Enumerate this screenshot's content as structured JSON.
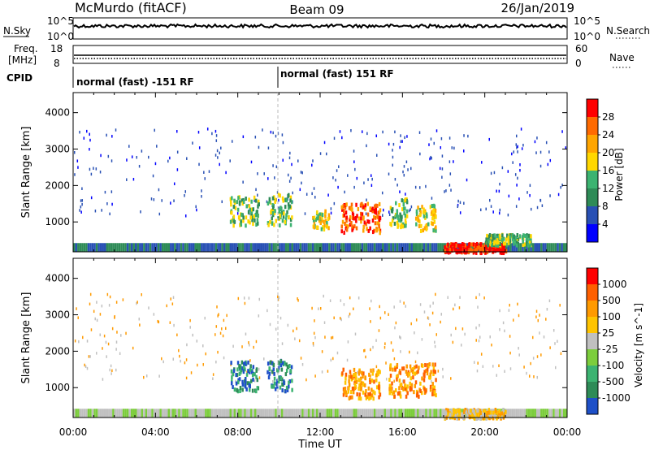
{
  "header": {
    "station": "McMurdo (fitACF)",
    "beam": "Beam 09",
    "date": "26/Jan/2019"
  },
  "left_labels": {
    "nsky": "N.Sky",
    "nsky_top": "10^5",
    "nsky_bot": "10^0",
    "freq_line1": "Freq.",
    "freq_line2": "[MHz]",
    "freq_top": "18",
    "freq_bot": "8",
    "cpid": "CPID"
  },
  "right_labels": {
    "nsearch": "N.Search",
    "nsearch_top": "10^5",
    "nsearch_bot": "10^0",
    "nave": "Nave",
    "nave_top": "60",
    "nave_bot": "0"
  },
  "cpid_segments": [
    {
      "label": "normal (fast) -151 RF",
      "start_hour": 0,
      "end_hour": 10
    },
    {
      "label": "normal (fast) 151 RF",
      "start_hour": 10,
      "end_hour": 24
    }
  ],
  "chart_data": [
    {
      "type": "heatmap",
      "title": "",
      "ylabel": "Slant Range [km]",
      "xlabel": "",
      "xlim_hours": [
        0,
        24
      ],
      "ylim": [
        180,
        4550
      ],
      "y_ticks": [
        1000,
        2000,
        3000,
        4000
      ],
      "colorbar": {
        "label": "Power [dB]",
        "ticks": [
          4,
          8,
          12,
          16,
          20,
          24,
          28
        ],
        "colors": [
          "#0000ff",
          "#2850b4",
          "#2e8b57",
          "#3cb371",
          "#ffd700",
          "#ffa500",
          "#ff6a00",
          "#ff0000"
        ]
      },
      "scatter_regions": [
        {
          "h0": 7.6,
          "h1": 9.0,
          "r0": 950,
          "r1": 1750,
          "level": 3
        },
        {
          "h0": 9.4,
          "h1": 10.6,
          "r0": 950,
          "r1": 1800,
          "level": 3
        },
        {
          "h0": 11.6,
          "h1": 12.4,
          "r0": 850,
          "r1": 1350,
          "level": 4
        },
        {
          "h0": 13.0,
          "h1": 14.9,
          "r0": 750,
          "r1": 1550,
          "level": 6
        },
        {
          "h0": 15.3,
          "h1": 16.2,
          "r0": 900,
          "r1": 1700,
          "level": 3
        },
        {
          "h0": 16.6,
          "h1": 17.6,
          "r0": 800,
          "r1": 1500,
          "level": 4
        },
        {
          "h0": 18.0,
          "h1": 21.0,
          "r0": 200,
          "r1": 450,
          "level": 7
        },
        {
          "h0": 20.0,
          "h1": 22.2,
          "r0": 400,
          "r1": 700,
          "level": 3
        }
      ]
    },
    {
      "type": "heatmap",
      "title": "",
      "ylabel": "Slant Range [km]",
      "xlabel": "Time UT",
      "xlim_hours": [
        0,
        24
      ],
      "x_ticks": [
        "00:00",
        "04:00",
        "08:00",
        "12:00",
        "16:00",
        "20:00",
        "00:00"
      ],
      "ylim": [
        180,
        4550
      ],
      "y_ticks": [
        1000,
        2000,
        3000,
        4000
      ],
      "colorbar": {
        "label": "Velocity [m s^-1]",
        "ticks": [
          1000,
          500,
          100,
          25,
          -25,
          -100,
          -500,
          -1000
        ],
        "colors": [
          "#1e50c8",
          "#2e8b57",
          "#3cb371",
          "#7ccd3c",
          "#c0c0c0",
          "#ffc400",
          "#ff9a00",
          "#ff6000",
          "#ff0000"
        ]
      },
      "scatter_regions": [
        {
          "h0": 7.6,
          "h1": 9.0,
          "r0": 950,
          "r1": 1750,
          "level": 1
        },
        {
          "h0": 9.4,
          "h1": 10.6,
          "r0": 950,
          "r1": 1800,
          "level": 1
        },
        {
          "h0": 13.0,
          "h1": 14.9,
          "r0": 750,
          "r1": 1550,
          "level": 6
        },
        {
          "h0": 15.3,
          "h1": 17.6,
          "r0": 800,
          "r1": 1700,
          "level": 6
        },
        {
          "h0": 18.0,
          "h1": 21.0,
          "r0": 200,
          "r1": 450,
          "level": 5
        }
      ]
    }
  ]
}
